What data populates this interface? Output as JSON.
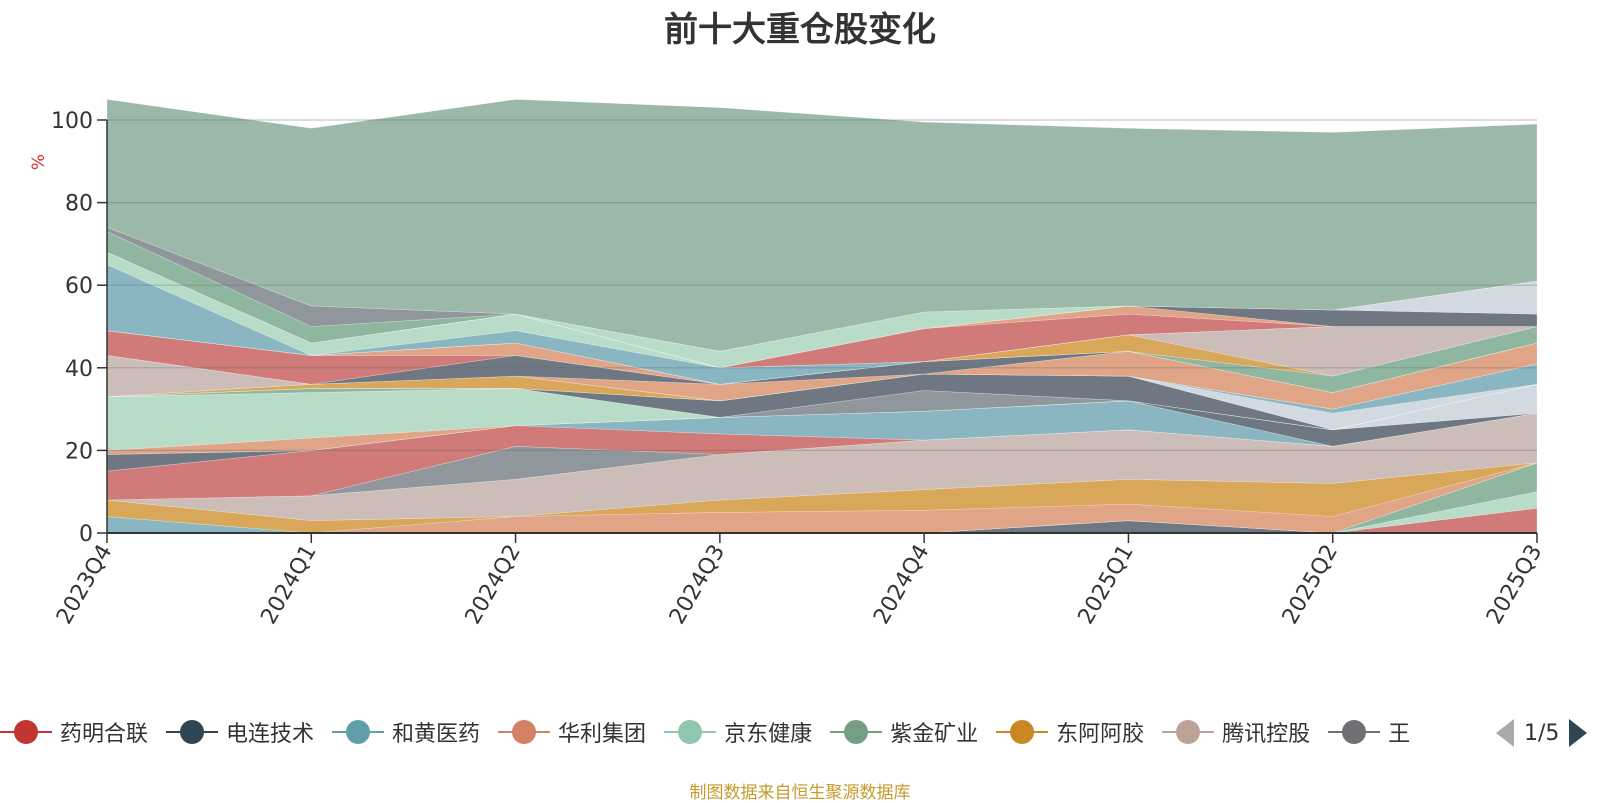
{
  "chart_data": {
    "type": "area",
    "title": "前十大重仓股变化",
    "ylabel": "%",
    "ylim": [
      0,
      100
    ],
    "yticks": [
      0,
      20,
      40,
      60,
      80,
      100
    ],
    "grid": true,
    "legend_position": "bottom",
    "categories": [
      "2023Q4",
      "2024Q1",
      "2024Q2",
      "2024Q3",
      "2024Q4",
      "2025Q1",
      "2025Q2",
      "2025Q3"
    ],
    "series": [
      {
        "name": "",
        "color": "#6f7782",
        "values": [
          0,
          0,
          0,
          0,
          0,
          3,
          0,
          0
        ]
      },
      {
        "name": "",
        "color": "#d07a7a",
        "values": [
          0,
          0,
          0,
          0,
          0,
          0,
          0,
          6
        ]
      },
      {
        "name": "",
        "color": "#b9dcc8",
        "values": [
          0,
          0,
          0,
          0,
          0,
          0,
          0,
          4
        ]
      },
      {
        "name": "",
        "color": "#8fb7a0",
        "values": [
          0,
          0,
          0,
          0,
          0,
          0,
          0,
          7
        ]
      },
      {
        "name": "",
        "color": "#8ab6c2",
        "values": [
          4,
          0,
          0,
          0,
          0,
          0,
          0,
          0
        ]
      },
      {
        "name": "",
        "color": "#e0a486",
        "values": [
          0,
          0,
          4,
          5,
          5.5,
          4,
          4,
          0
        ]
      },
      {
        "name": "",
        "color": "#d8a75a",
        "values": [
          4,
          3,
          0,
          3,
          5,
          6,
          8,
          0
        ]
      },
      {
        "name": "",
        "color": "#cdbdb8",
        "values": [
          0,
          6,
          9,
          11,
          12,
          12,
          9,
          12
        ]
      },
      {
        "name": "",
        "color": "#8f969c",
        "values": [
          0,
          0,
          8,
          0,
          0,
          0,
          0,
          0
        ]
      },
      {
        "name": "",
        "color": "#d07a7a",
        "values": [
          7,
          11,
          5,
          5,
          0,
          0,
          0,
          0
        ]
      },
      {
        "name": "",
        "color": "#8ab6c2",
        "values": [
          0,
          0,
          0,
          4,
          7,
          7,
          0,
          0
        ]
      },
      {
        "name": "",
        "color": "#6f7782",
        "values": [
          4,
          0,
          0,
          0,
          0,
          0,
          4,
          0
        ]
      },
      {
        "name": "",
        "color": "#d3d9e1",
        "values": [
          0,
          0,
          0,
          0,
          0,
          0,
          0,
          7
        ]
      },
      {
        "name": "",
        "color": "#e0a486",
        "values": [
          1,
          3,
          0,
          0,
          0,
          0,
          0,
          0
        ]
      },
      {
        "name": "",
        "color": "#b9dcc8",
        "values": [
          13,
          11,
          9,
          0,
          0,
          0,
          0,
          0
        ]
      },
      {
        "name": "",
        "color": "#8f969c",
        "values": [
          0,
          0,
          0,
          0,
          5,
          0,
          0,
          0
        ]
      },
      {
        "name": "",
        "color": "#8fb7a0",
        "values": [
          0,
          1,
          0,
          0,
          0,
          0,
          0,
          0
        ]
      },
      {
        "name": "",
        "color": "#6f7782",
        "values": [
          0,
          0,
          0,
          4,
          4,
          6,
          0,
          0
        ]
      },
      {
        "name": "",
        "color": "#d3d9e1",
        "values": [
          0,
          0,
          0,
          0,
          0,
          0,
          4,
          0
        ]
      },
      {
        "name": "",
        "color": "#8ab6c2",
        "values": [
          0,
          0,
          0,
          0,
          0,
          0,
          1,
          5
        ]
      },
      {
        "name": "",
        "color": "#d8a75a",
        "values": [
          0,
          1,
          3,
          0,
          0,
          0,
          0,
          0
        ]
      },
      {
        "name": "",
        "color": "#cdbdb8",
        "values": [
          10,
          0,
          0,
          0,
          0,
          0,
          0,
          0
        ]
      },
      {
        "name": "",
        "color": "#e0a486",
        "values": [
          0,
          0,
          0,
          4,
          0,
          6,
          4,
          5
        ]
      },
      {
        "name": "",
        "color": "#6f7782",
        "values": [
          0,
          0,
          5,
          0,
          3,
          0,
          0,
          0
        ]
      },
      {
        "name": "",
        "color": "#d07a7a",
        "values": [
          6,
          7,
          0,
          0,
          0,
          0,
          0,
          0
        ]
      },
      {
        "name": "",
        "color": "#e0a486",
        "values": [
          0,
          0,
          3,
          0,
          0,
          0,
          0,
          0
        ]
      },
      {
        "name": "",
        "color": "#8fb7a0",
        "values": [
          0,
          0,
          0,
          0,
          0,
          0,
          4,
          4
        ]
      },
      {
        "name": "",
        "color": "#d8a75a",
        "values": [
          0,
          0,
          0,
          0,
          0,
          4,
          0,
          0
        ]
      },
      {
        "name": "",
        "color": "#cdbdb8",
        "values": [
          0,
          0,
          0,
          0,
          0,
          0,
          12,
          0
        ]
      },
      {
        "name": "",
        "color": "#8ab6c2",
        "values": [
          16,
          0,
          3,
          4,
          0,
          0,
          0,
          0
        ]
      },
      {
        "name": "",
        "color": "#b9dcc8",
        "values": [
          3,
          3,
          4,
          0,
          0,
          0,
          0,
          0
        ]
      },
      {
        "name": "",
        "color": "#d07a7a",
        "values": [
          0,
          0,
          0,
          0,
          8,
          5,
          0,
          0
        ]
      },
      {
        "name": "",
        "color": "#e0a486",
        "values": [
          0,
          0,
          0,
          0,
          0,
          2,
          0,
          0
        ]
      },
      {
        "name": "",
        "color": "#6f7782",
        "values": [
          0,
          0,
          0,
          0,
          0,
          0,
          4,
          3
        ]
      },
      {
        "name": "",
        "color": "#d3d9e1",
        "values": [
          0,
          0,
          0,
          0,
          0,
          0,
          0,
          8
        ]
      },
      {
        "name": "",
        "color": "#b9dcc8",
        "values": [
          0,
          0,
          0,
          4,
          4,
          0,
          0,
          0
        ]
      },
      {
        "name": "",
        "color": "#8fb7a0",
        "values": [
          5,
          4,
          0,
          0,
          0,
          0,
          0,
          0
        ]
      },
      {
        "name": "",
        "color": "#8f969c",
        "values": [
          1,
          5,
          0,
          0,
          0,
          0,
          0,
          0
        ]
      },
      {
        "name": "",
        "color": "#9bb8a8",
        "values": [
          31,
          43,
          52,
          59,
          46,
          43,
          43,
          38
        ]
      }
    ]
  },
  "legend": {
    "items": [
      {
        "label": "药明合联",
        "color": "#c23531"
      },
      {
        "label": "电连技术",
        "color": "#2f4554"
      },
      {
        "label": "和黄医药",
        "color": "#61a0a8"
      },
      {
        "label": "华利集团",
        "color": "#d48265"
      },
      {
        "label": "京东健康",
        "color": "#91c7ae"
      },
      {
        "label": "紫金矿业",
        "color": "#749f83"
      },
      {
        "label": "东阿阿胶",
        "color": "#ca8622"
      },
      {
        "label": "腾讯控股",
        "color": "#bda29a"
      },
      {
        "label": "王",
        "color": "#6e7074"
      }
    ],
    "page": "1/5"
  },
  "source_note": "制图数据来自恒生聚源数据库"
}
